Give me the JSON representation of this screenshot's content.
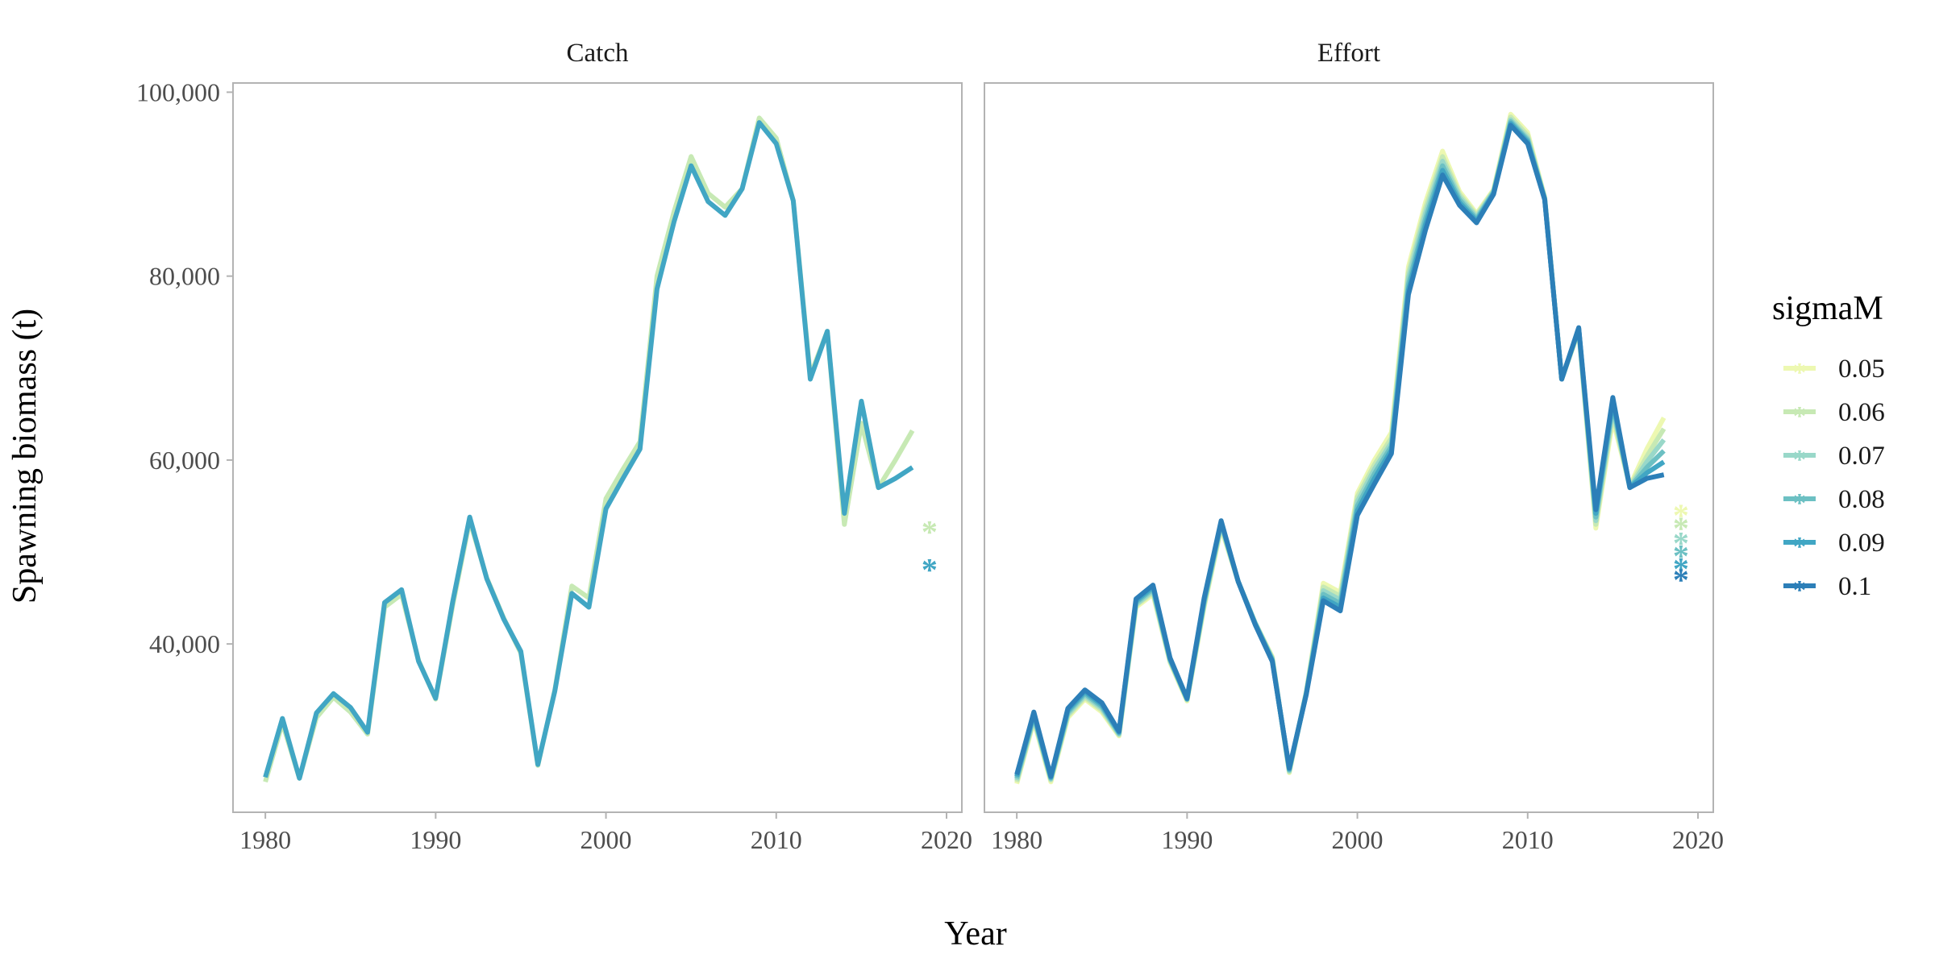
{
  "chart_data": {
    "type": "line",
    "xlabel": "Year",
    "ylabel": "Spawning biomass (t)",
    "xlim": [
      1978.1,
      2020.9
    ],
    "ylim": [
      21700,
      101000
    ],
    "x_ticks": [
      1980,
      1990,
      2000,
      2010,
      2020
    ],
    "x_tick_labels": [
      "1980",
      "1990",
      "2000",
      "2010",
      "2020"
    ],
    "y_ticks": [
      40000,
      60000,
      80000,
      100000
    ],
    "y_tick_labels": [
      "40,000",
      "60,000",
      "80,000",
      "100,000"
    ],
    "grid": false,
    "legend": {
      "title": "sigmaM",
      "placement": "right",
      "entries": [
        {
          "label": "0.05",
          "color": "#edf8b1"
        },
        {
          "label": "0.06",
          "color": "#c7e9b4"
        },
        {
          "label": "0.07",
          "color": "#99d8c9"
        },
        {
          "label": "0.08",
          "color": "#6cc0c3"
        },
        {
          "label": "0.09",
          "color": "#41a6c4"
        },
        {
          "label": "0.1",
          "color": "#2c7fb8"
        }
      ]
    },
    "panels": [
      {
        "strip": "Catch",
        "x": [
          1980,
          1981,
          1982,
          1983,
          1984,
          1985,
          1986,
          1987,
          1988,
          1989,
          1990,
          1991,
          1992,
          1993,
          1994,
          1995,
          1996,
          1997,
          1998,
          1999,
          2000,
          2001,
          2002,
          2003,
          2004,
          2005,
          2006,
          2007,
          2008,
          2009,
          2010,
          2011,
          2012,
          2013,
          2014,
          2015,
          2016,
          2017,
          2018
        ],
        "series": [
          {
            "name": "0.06",
            "color": "#c7e9b4",
            "values": [
              25000,
              31400,
              25400,
              32000,
              34200,
              32600,
              30200,
              44000,
              45400,
              38200,
              34000,
              44200,
              53400,
              47200,
              42800,
              39000,
              26800,
              35000,
              46300,
              45000,
              55800,
              59000,
              62000,
              80000,
              87000,
              93000,
              89000,
              87500,
              89500,
              97200,
              95000,
              88200,
              69200,
              74000,
              53000,
              64000,
              57000,
              60000,
              63200
            ]
          },
          {
            "name": "0.09",
            "color": "#41a6c4",
            "values": [
              25500,
              31900,
              25400,
              32500,
              34600,
              33100,
              30400,
              44500,
              45900,
              38100,
              34100,
              44600,
              53800,
              47100,
              42700,
              39200,
              26900,
              34900,
              45500,
              44000,
              54700,
              58000,
              61200,
              78600,
              85900,
              92000,
              88100,
              86600,
              89500,
              96700,
              94400,
              88200,
              68800,
              74000,
              54200,
              66400,
              57000,
              58000,
              59200
            ]
          }
        ],
        "points": [
          {
            "name": "0.06",
            "color": "#c7e9b4",
            "x": 2019,
            "y": 52400
          },
          {
            "name": "0.09",
            "color": "#41a6c4",
            "x": 2019,
            "y": 48300
          }
        ]
      },
      {
        "strip": "Effort",
        "x": [
          1980,
          1981,
          1982,
          1983,
          1984,
          1985,
          1986,
          1987,
          1988,
          1989,
          1990,
          1991,
          1992,
          1993,
          1994,
          1995,
          1996,
          1997,
          1998,
          1999,
          2000,
          2001,
          2002,
          2003,
          2004,
          2005,
          2006,
          2007,
          2008,
          2009,
          2010,
          2011,
          2012,
          2013,
          2014,
          2015,
          2016,
          2017,
          2018
        ],
        "series": [
          {
            "name": "0.05",
            "color": "#edf8b1",
            "values": [
              24800,
              31600,
              25000,
              32000,
              34000,
              32600,
              30000,
              44000,
              45400,
              38000,
              33800,
              44000,
              52600,
              46800,
              42300,
              38600,
              26000,
              34800,
              46600,
              45600,
              56400,
              60000,
              63000,
              81000,
              88000,
              93600,
              89200,
              86800,
              89400,
              97600,
              95600,
              88600,
              68800,
              74000,
              52600,
              64400,
              57200,
              61200,
              64600
            ]
          },
          {
            "name": "0.06",
            "color": "#c7e9b4",
            "values": [
              25000,
              31800,
              25200,
              32200,
              34200,
              32800,
              30100,
              44200,
              45600,
              38100,
              33900,
              44200,
              52800,
              46800,
              42300,
              38500,
              26100,
              34800,
              46200,
              45200,
              56000,
              59500,
              62400,
              80400,
              87400,
              93000,
              88900,
              86600,
              89300,
              97300,
              95300,
              88500,
              68800,
              74100,
              53000,
              65000,
              57100,
              60400,
              63400
            ]
          },
          {
            "name": "0.07",
            "color": "#99d8c9",
            "values": [
              25200,
              32000,
              25300,
              32400,
              34400,
              33000,
              30200,
              44300,
              45800,
              38200,
              34000,
              44400,
              53000,
              46800,
              42300,
              38400,
              26200,
              34700,
              45800,
              44800,
              55500,
              59000,
              61900,
              79800,
              86800,
              92500,
              88600,
              86400,
              89200,
              97000,
              95000,
              88500,
              68800,
              74200,
              53400,
              65600,
              57000,
              59800,
              62200
            ]
          },
          {
            "name": "0.08",
            "color": "#6cc0c3",
            "values": [
              25400,
              32200,
              25400,
              32600,
              34600,
              33200,
              30300,
              44500,
              46000,
              38300,
              34000,
              44600,
              53200,
              46800,
              42200,
              38300,
              26300,
              34600,
              45400,
              44400,
              55000,
              58500,
              61500,
              79100,
              86200,
              92000,
              88300,
              86200,
              89100,
              96800,
              94800,
              88400,
              68800,
              74300,
              53800,
              66000,
              57000,
              59200,
              61000
            ]
          },
          {
            "name": "0.09",
            "color": "#41a6c4",
            "values": [
              25600,
              32400,
              25500,
              32800,
              34800,
              33400,
              30400,
              44700,
              46200,
              38400,
              34000,
              44800,
              53300,
              46800,
              42200,
              38200,
              26400,
              34600,
              45000,
              44000,
              54500,
              58000,
              61100,
              78500,
              85600,
              91500,
              88000,
              86000,
              89000,
              96600,
              94600,
              88400,
              68800,
              74300,
              54200,
              66400,
              57000,
              58600,
              59800
            ]
          },
          {
            "name": "0.1",
            "color": "#2c7fb8",
            "values": [
              25800,
              32600,
              25600,
              33000,
              35000,
              33600,
              30500,
              44900,
              46400,
              38500,
              34100,
              45000,
              53400,
              46800,
              42100,
              38100,
              26500,
              34500,
              44700,
              43600,
              54000,
              57400,
              60700,
              78000,
              85000,
              91000,
              87700,
              85800,
              88900,
              96400,
              94400,
              88300,
              68800,
              74400,
              54600,
              66800,
              57000,
              58000,
              58400
            ]
          }
        ],
        "points": [
          {
            "name": "0.05",
            "color": "#edf8b1",
            "x": 2019,
            "y": 54200
          },
          {
            "name": "0.06",
            "color": "#c7e9b4",
            "x": 2019,
            "y": 52800
          },
          {
            "name": "0.07",
            "color": "#99d8c9",
            "x": 2019,
            "y": 51200
          },
          {
            "name": "0.08",
            "color": "#6cc0c3",
            "x": 2019,
            "y": 49800
          },
          {
            "name": "0.09",
            "color": "#41a6c4",
            "x": 2019,
            "y": 48400
          },
          {
            "name": "0.1",
            "color": "#2c7fb8",
            "x": 2019,
            "y": 47200
          }
        ]
      }
    ]
  }
}
